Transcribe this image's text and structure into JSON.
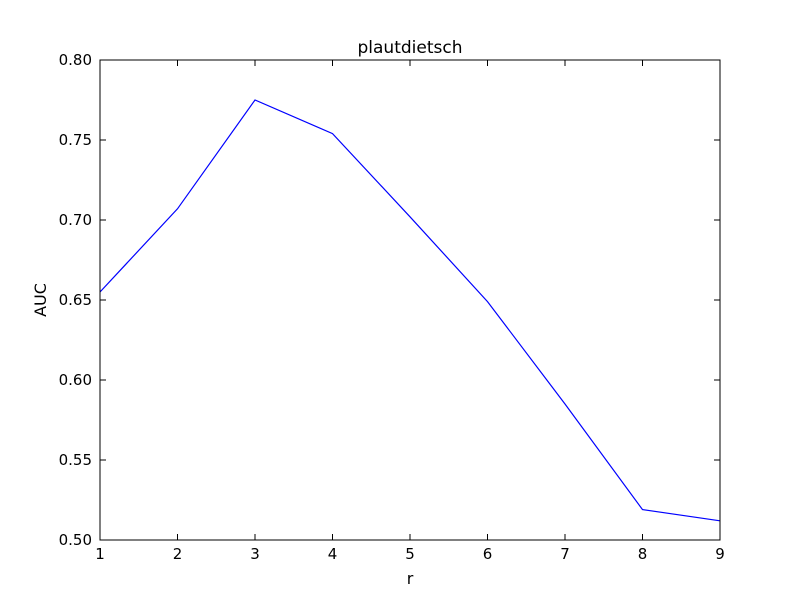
{
  "chart_data": {
    "type": "line",
    "title": "plautdietsch",
    "xlabel": "r",
    "ylabel": "AUC",
    "xlim": [
      1,
      9
    ],
    "ylim": [
      0.5,
      0.8
    ],
    "x_ticks": [
      "1",
      "2",
      "3",
      "4",
      "5",
      "6",
      "7",
      "8",
      "9"
    ],
    "y_ticks": [
      "0.50",
      "0.55",
      "0.60",
      "0.65",
      "0.70",
      "0.75",
      "0.80"
    ],
    "grid": false,
    "series": [
      {
        "color": "#0000ff",
        "x": [
          1,
          2,
          3,
          4,
          5,
          6,
          7,
          8,
          9
        ],
        "y": [
          0.655,
          0.707,
          0.775,
          0.754,
          0.702,
          0.649,
          0.585,
          0.519,
          0.512
        ]
      }
    ]
  }
}
